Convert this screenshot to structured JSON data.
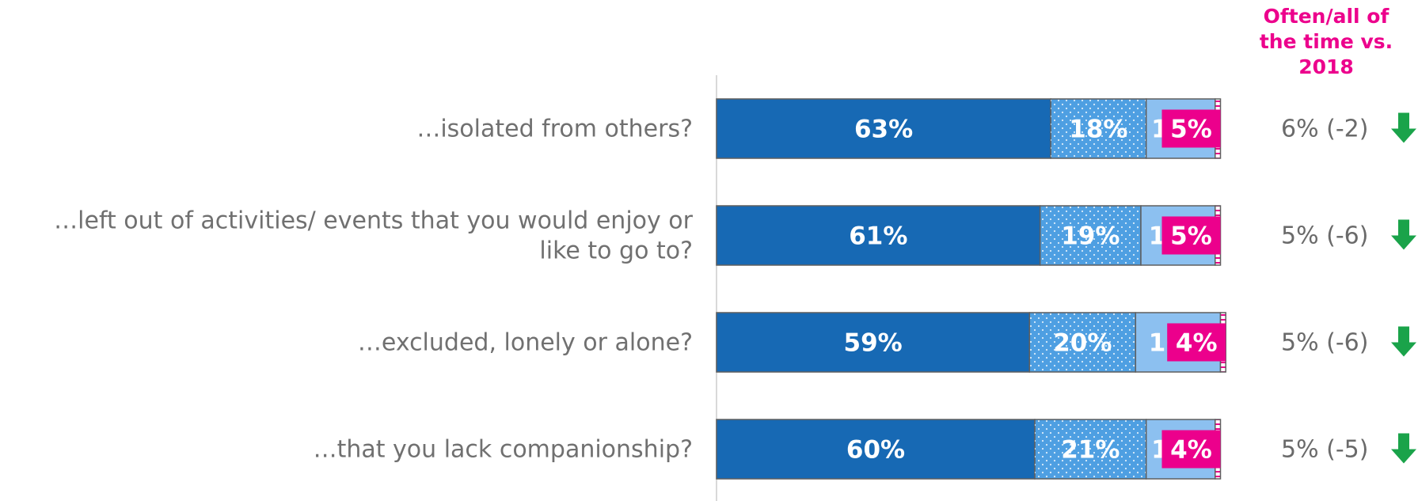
{
  "header": {
    "lines": [
      "Often/all of",
      "the time vs.",
      "2018"
    ]
  },
  "colors": {
    "segment_1": "#1769b4",
    "segment_2": "#4e9fe2",
    "segment_3": "#8cc0f0",
    "segment_4": "#ffffff",
    "highlight": "#ec008c",
    "positive_arrow": "#1aa34a",
    "label_text": "#707070",
    "comparison_text": "#6a6a6a"
  },
  "chart_data": {
    "type": "bar",
    "orientation": "horizontal",
    "stacked": true,
    "categories": [
      "…isolated from others?",
      "…left out of activities/ events that you would enjoy or like to go to?",
      "…excluded, lonely or alone?",
      "…that you lack companionship?"
    ],
    "category_lines": [
      [
        "…isolated from others?"
      ],
      [
        "…left out of activities/ events that you would enjoy or",
        "like to go to?"
      ],
      [
        "…excluded, lonely or alone?"
      ],
      [
        "…that you lack companionship?"
      ]
    ],
    "series": [
      {
        "values": [
          63,
          61,
          59,
          60
        ]
      },
      {
        "values": [
          18,
          19,
          20,
          21
        ]
      },
      {
        "values": [
          13,
          14,
          16,
          13
        ]
      },
      {
        "values": [
          1,
          1,
          1,
          1
        ]
      }
    ],
    "data_labels": [
      [
        "63%",
        "18%",
        "13%"
      ],
      [
        "61%",
        "19%",
        "14%"
      ],
      [
        "59%",
        "20%",
        "16%"
      ],
      [
        "60%",
        "21%",
        "13%"
      ]
    ],
    "highlight_labels": [
      "5%",
      "5%",
      "4%",
      "4%"
    ],
    "comparison": {
      "title": "Often/all of the time vs. 2018",
      "values": [
        "6% (-2)",
        "5% (-6)",
        "5% (-6)",
        "5% (-5)"
      ],
      "direction": [
        "down",
        "down",
        "down",
        "down"
      ]
    },
    "xlim": [
      0,
      100
    ]
  }
}
